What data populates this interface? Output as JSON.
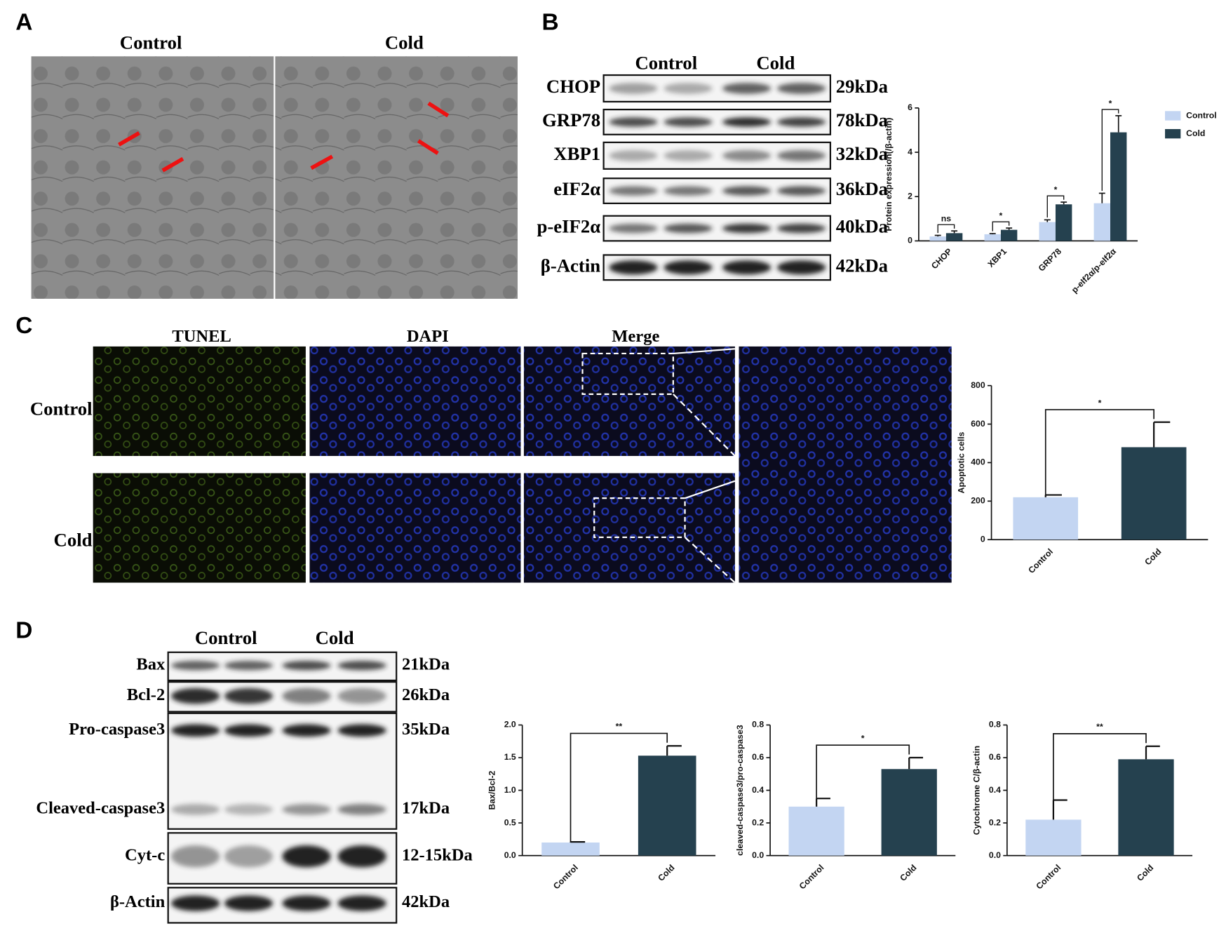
{
  "panels": {
    "A": {
      "letter": "A",
      "columns": [
        "Control",
        "Cold"
      ]
    },
    "B": {
      "letter": "B",
      "groups": [
        "Control",
        "Cold"
      ],
      "rows": [
        [
          "CHOP",
          "29kDa"
        ],
        [
          "GRP78",
          "78kDa"
        ],
        [
          "XBP1",
          "32kDa"
        ],
        [
          "eIF2α",
          "36kDa"
        ],
        [
          "p-eIF2α",
          "40kDa"
        ],
        [
          "β-Actin",
          "42kDa"
        ]
      ]
    },
    "C": {
      "letter": "C",
      "columns": [
        "TUNEL",
        "DAPI",
        "Merge"
      ],
      "rows": [
        "Control",
        "Cold"
      ]
    },
    "D": {
      "letter": "D",
      "groups": [
        "Control",
        "Cold"
      ],
      "rows": [
        [
          "Bax",
          "21kDa"
        ],
        [
          "Bcl-2",
          "26kDa"
        ],
        [
          "Pro-caspase3",
          "35kDa"
        ],
        [
          "Cleaved-caspase3",
          "17kDa"
        ],
        [
          "Cyt-c",
          "12-15kDa"
        ],
        [
          "β-Actin",
          "42kDa"
        ]
      ]
    }
  },
  "chart_data": [
    {
      "type": "grouped-bar",
      "ylabel": "Protein expression(/β-actin)",
      "categories": [
        "CHOP",
        "XBP1",
        "GRP78",
        "p-eIf2α/p-eIf2α"
      ],
      "series": [
        {
          "name": "Control",
          "color": "#c3d5f2",
          "values": [
            0.2,
            0.3,
            0.85,
            1.7
          ],
          "errors": [
            0.05,
            0.03,
            0.1,
            0.45
          ]
        },
        {
          "name": "Cold",
          "color": "#25414f",
          "values": [
            0.35,
            0.5,
            1.65,
            4.9
          ],
          "errors": [
            0.1,
            0.08,
            0.1,
            0.75
          ]
        }
      ],
      "significance": [
        "ns",
        "*",
        "*",
        "*"
      ],
      "ylim": [
        0,
        6
      ],
      "yticks": [
        0,
        2,
        4,
        6
      ],
      "legend": "right"
    },
    {
      "type": "bar",
      "ylabel": "Apoptotic cells",
      "categories": [
        "Control",
        "Cold"
      ],
      "values": [
        220,
        480
      ],
      "errors": [
        12,
        130
      ],
      "colors": [
        "#c3d5f2",
        "#25414f"
      ],
      "significance": "*",
      "ylim": [
        0,
        800
      ],
      "yticks": [
        0,
        200,
        400,
        600,
        800
      ]
    },
    {
      "type": "bar",
      "ylabel": "Bax/Bcl-2",
      "categories": [
        "Control",
        "Cold"
      ],
      "values": [
        0.2,
        1.53
      ],
      "errors": [
        0.01,
        0.15
      ],
      "colors": [
        "#c3d5f2",
        "#25414f"
      ],
      "significance": "**",
      "ylim": [
        0,
        2
      ],
      "yticks": [
        {
          "value": 0,
          "label": "0.0"
        },
        0.5,
        {
          "value": 1,
          "label": "1.0"
        },
        1.5,
        {
          "value": 2,
          "label": "2.0"
        }
      ]
    },
    {
      "type": "bar",
      "ylabel": "cleaved-caspase3/pro-caspase3",
      "categories": [
        "Control",
        "Cold"
      ],
      "values": [
        0.3,
        0.53
      ],
      "errors": [
        0.05,
        0.07
      ],
      "colors": [
        "#c3d5f2",
        "#25414f"
      ],
      "significance": "*",
      "ylim": [
        0,
        0.8
      ],
      "yticks": [
        {
          "value": 0,
          "label": "0.0"
        },
        0.2,
        0.4,
        0.6,
        0.8
      ]
    },
    {
      "type": "bar",
      "ylabel": "Cytochrome C/β-actin",
      "categories": [
        "Control",
        "Cold"
      ],
      "values": [
        0.22,
        0.59
      ],
      "errors": [
        0.12,
        0.08
      ],
      "colors": [
        "#c3d5f2",
        "#25414f"
      ],
      "significance": "**",
      "ylim": [
        0,
        0.8
      ],
      "yticks": [
        {
          "value": 0,
          "label": "0.0"
        },
        0.2,
        0.4,
        0.6,
        0.8
      ]
    }
  ]
}
